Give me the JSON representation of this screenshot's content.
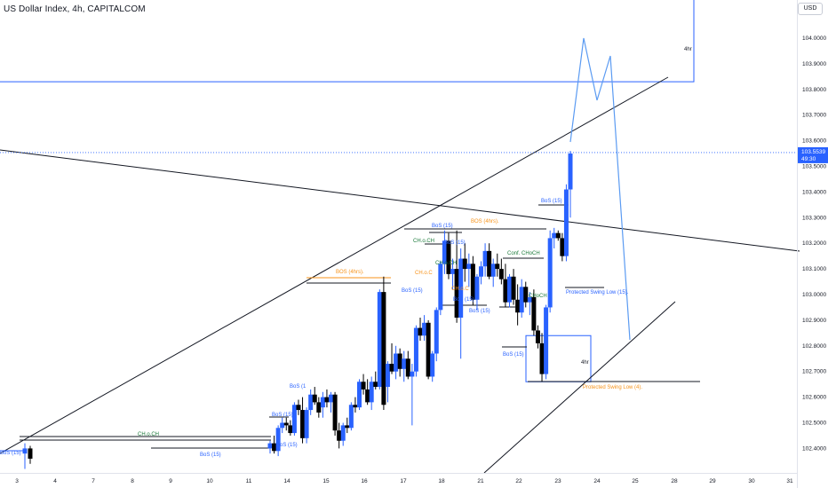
{
  "header": {
    "title": "US Dollar Index, 4h, CAPITALCOM",
    "currency": "USD"
  },
  "colors": {
    "bull": "#2962ff",
    "bear": "#000000",
    "label_blue": "#2962ff",
    "label_orange": "#f7931a",
    "label_green": "#1b7a3a",
    "projection": "#5b9bf2",
    "trendline": "#131722"
  },
  "last_price": {
    "value": "103.5539",
    "countdown": "49:30"
  },
  "chart_data": {
    "type": "candlestick",
    "x_ticks": [
      {
        "label": "3",
        "date": "2023-10-03"
      },
      {
        "label": "4",
        "date": "2023-10-04"
      },
      {
        "label": "7",
        "date": "2023-10-07"
      },
      {
        "label": "8",
        "date": "2023-10-08"
      },
      {
        "label": "9",
        "date": "2023-10-09"
      },
      {
        "label": "10",
        "date": "2023-10-10"
      },
      {
        "label": "11",
        "date": "2023-10-11"
      },
      {
        "label": "14",
        "date": "2023-10-14"
      },
      {
        "label": "15",
        "date": "2023-10-15"
      },
      {
        "label": "16",
        "date": "2023-10-16"
      },
      {
        "label": "17",
        "date": "2023-10-17"
      },
      {
        "label": "18",
        "date": "2023-10-18"
      },
      {
        "label": "21",
        "date": "2023-10-21"
      },
      {
        "label": "22",
        "date": "2023-10-22"
      },
      {
        "label": "23",
        "date": "2023-10-23"
      },
      {
        "label": "24",
        "date": "2023-10-24"
      },
      {
        "label": "25",
        "date": "2023-10-25"
      },
      {
        "label": "28",
        "date": "2023-10-28"
      },
      {
        "label": "29",
        "date": "2023-10-29"
      },
      {
        "label": "30",
        "date": "2023-10-30"
      },
      {
        "label": "31",
        "date": "2023-10-31"
      }
    ],
    "y_ticks": [
      "104.0000",
      "103.9000",
      "103.8000",
      "103.7000",
      "103.6000",
      "103.5000",
      "103.4000",
      "103.3000",
      "103.2000",
      "103.1000",
      "103.0000",
      "102.9000",
      "102.8000",
      "102.7000",
      "102.6000",
      "102.5000",
      "102.4000"
    ],
    "ylim": [
      102.3,
      104.2
    ],
    "candles": [
      {
        "o": 102.38,
        "h": 102.42,
        "l": 102.32,
        "c": 102.4
      },
      {
        "o": 102.4,
        "h": 102.41,
        "l": 102.34,
        "c": 102.36
      },
      {
        "o": 102.4,
        "h": 102.43,
        "l": 102.38,
        "c": 102.42
      },
      {
        "o": 102.42,
        "h": 102.45,
        "l": 102.38,
        "c": 102.39
      },
      {
        "o": 102.39,
        "h": 102.49,
        "l": 102.37,
        "c": 102.48
      },
      {
        "o": 102.48,
        "h": 102.52,
        "l": 102.46,
        "c": 102.5
      },
      {
        "o": 102.5,
        "h": 102.52,
        "l": 102.47,
        "c": 102.49
      },
      {
        "o": 102.49,
        "h": 102.51,
        "l": 102.45,
        "c": 102.46
      },
      {
        "o": 102.46,
        "h": 102.58,
        "l": 102.45,
        "c": 102.57
      },
      {
        "o": 102.57,
        "h": 102.59,
        "l": 102.53,
        "c": 102.55
      },
      {
        "o": 102.55,
        "h": 102.6,
        "l": 102.42,
        "c": 102.44
      },
      {
        "o": 102.44,
        "h": 102.56,
        "l": 102.42,
        "c": 102.55
      },
      {
        "o": 102.55,
        "h": 102.63,
        "l": 102.53,
        "c": 102.61
      },
      {
        "o": 102.61,
        "h": 102.64,
        "l": 102.57,
        "c": 102.58
      },
      {
        "o": 102.58,
        "h": 102.6,
        "l": 102.52,
        "c": 102.54
      },
      {
        "o": 102.56,
        "h": 102.62,
        "l": 102.52,
        "c": 102.6
      },
      {
        "o": 102.6,
        "h": 102.63,
        "l": 102.56,
        "c": 102.58
      },
      {
        "o": 102.58,
        "h": 102.62,
        "l": 102.54,
        "c": 102.61
      },
      {
        "o": 102.61,
        "h": 102.62,
        "l": 102.45,
        "c": 102.47
      },
      {
        "o": 102.47,
        "h": 102.5,
        "l": 102.4,
        "c": 102.43
      },
      {
        "o": 102.43,
        "h": 102.5,
        "l": 102.41,
        "c": 102.49
      },
      {
        "o": 102.49,
        "h": 102.52,
        "l": 102.46,
        "c": 102.48
      },
      {
        "o": 102.48,
        "h": 102.58,
        "l": 102.47,
        "c": 102.57
      },
      {
        "o": 102.57,
        "h": 102.6,
        "l": 102.54,
        "c": 102.56
      },
      {
        "o": 102.56,
        "h": 102.67,
        "l": 102.55,
        "c": 102.66
      },
      {
        "o": 102.66,
        "h": 102.69,
        "l": 102.61,
        "c": 102.63
      },
      {
        "o": 102.63,
        "h": 102.67,
        "l": 102.57,
        "c": 102.58
      },
      {
        "o": 102.58,
        "h": 102.68,
        "l": 102.55,
        "c": 102.66
      },
      {
        "o": 102.66,
        "h": 102.7,
        "l": 102.63,
        "c": 102.64
      },
      {
        "o": 102.64,
        "h": 103.02,
        "l": 102.63,
        "c": 103.01
      },
      {
        "o": 103.01,
        "h": 103.07,
        "l": 102.55,
        "c": 102.57
      },
      {
        "o": 102.64,
        "h": 102.74,
        "l": 102.58,
        "c": 102.73
      },
      {
        "o": 102.73,
        "h": 102.81,
        "l": 102.69,
        "c": 102.7
      },
      {
        "o": 102.7,
        "h": 102.8,
        "l": 102.67,
        "c": 102.77
      },
      {
        "o": 102.77,
        "h": 102.79,
        "l": 102.68,
        "c": 102.71
      },
      {
        "o": 102.71,
        "h": 102.78,
        "l": 102.66,
        "c": 102.75
      },
      {
        "o": 102.75,
        "h": 102.78,
        "l": 102.67,
        "c": 102.68
      },
      {
        "o": 102.68,
        "h": 102.73,
        "l": 102.49,
        "c": 102.7
      },
      {
        "o": 102.7,
        "h": 102.88,
        "l": 102.68,
        "c": 102.87
      },
      {
        "o": 102.87,
        "h": 102.91,
        "l": 102.82,
        "c": 102.84
      },
      {
        "o": 102.84,
        "h": 102.92,
        "l": 102.82,
        "c": 102.89
      },
      {
        "o": 102.89,
        "h": 102.9,
        "l": 102.67,
        "c": 102.68
      },
      {
        "o": 102.68,
        "h": 102.78,
        "l": 102.66,
        "c": 102.77
      },
      {
        "o": 102.77,
        "h": 102.95,
        "l": 102.74,
        "c": 102.94
      },
      {
        "o": 102.94,
        "h": 103.13,
        "l": 102.92,
        "c": 103.12
      },
      {
        "o": 103.12,
        "h": 103.25,
        "l": 103.08,
        "c": 103.21
      },
      {
        "o": 103.21,
        "h": 103.24,
        "l": 103.06,
        "c": 103.08
      },
      {
        "o": 103.08,
        "h": 103.14,
        "l": 103.02,
        "c": 103.1
      },
      {
        "o": 103.1,
        "h": 103.25,
        "l": 102.89,
        "c": 102.91
      },
      {
        "o": 102.91,
        "h": 103.18,
        "l": 102.75,
        "c": 103.14
      },
      {
        "o": 103.14,
        "h": 103.2,
        "l": 103.05,
        "c": 103.1
      },
      {
        "o": 103.1,
        "h": 103.16,
        "l": 103.03,
        "c": 103.12
      },
      {
        "o": 103.12,
        "h": 103.15,
        "l": 102.96,
        "c": 102.98
      },
      {
        "o": 102.98,
        "h": 103.08,
        "l": 102.94,
        "c": 103.07
      },
      {
        "o": 103.07,
        "h": 103.13,
        "l": 103.04,
        "c": 103.11
      },
      {
        "o": 103.11,
        "h": 103.2,
        "l": 103.07,
        "c": 103.17
      },
      {
        "o": 103.17,
        "h": 103.2,
        "l": 103.06,
        "c": 103.07
      },
      {
        "o": 103.07,
        "h": 103.14,
        "l": 103.03,
        "c": 103.12
      },
      {
        "o": 103.12,
        "h": 103.16,
        "l": 103.07,
        "c": 103.1
      },
      {
        "o": 103.1,
        "h": 103.14,
        "l": 103.04,
        "c": 103.06
      },
      {
        "o": 103.06,
        "h": 103.12,
        "l": 102.95,
        "c": 102.97
      },
      {
        "o": 102.97,
        "h": 103.08,
        "l": 102.95,
        "c": 103.07
      },
      {
        "o": 103.07,
        "h": 103.1,
        "l": 102.96,
        "c": 102.98
      },
      {
        "o": 102.98,
        "h": 103.04,
        "l": 102.88,
        "c": 102.93
      },
      {
        "o": 102.93,
        "h": 103.06,
        "l": 102.91,
        "c": 103.03
      },
      {
        "o": 103.03,
        "h": 103.05,
        "l": 102.95,
        "c": 102.97
      },
      {
        "o": 102.97,
        "h": 103.01,
        "l": 102.92,
        "c": 102.99
      },
      {
        "o": 102.99,
        "h": 103.02,
        "l": 102.84,
        "c": 102.86
      },
      {
        "o": 102.86,
        "h": 102.88,
        "l": 102.79,
        "c": 102.81
      },
      {
        "o": 102.81,
        "h": 102.85,
        "l": 102.66,
        "c": 102.69
      },
      {
        "o": 102.69,
        "h": 102.96,
        "l": 102.67,
        "c": 102.95
      },
      {
        "o": 102.95,
        "h": 103.25,
        "l": 102.93,
        "c": 103.22
      },
      {
        "o": 103.22,
        "h": 103.26,
        "l": 103.18,
        "c": 103.24
      },
      {
        "o": 103.24,
        "h": 103.25,
        "l": 103.21,
        "c": 103.22
      },
      {
        "o": 103.22,
        "h": 103.24,
        "l": 103.13,
        "c": 103.15
      },
      {
        "o": 103.15,
        "h": 103.43,
        "l": 103.13,
        "c": 103.41
      },
      {
        "o": 103.41,
        "h": 103.56,
        "l": 103.3,
        "c": 103.55
      }
    ],
    "series": [
      {
        "name": "BoS (15)",
        "type": "line",
        "x": [
          "2023-10-03",
          "2023-10-03"
        ],
        "y": [
          102.4,
          102.4
        ]
      },
      {
        "name": "CH.o.CH",
        "type": "line",
        "x": [
          "2023-10-03",
          "2023-10-11"
        ],
        "y": [
          102.44,
          102.44
        ]
      },
      {
        "name": "BoS (15)",
        "type": "line",
        "x": [
          "2023-10-09",
          "2023-10-11"
        ],
        "y": [
          102.4,
          102.4
        ]
      },
      {
        "name": "BoS (4hrs)",
        "type": "line",
        "x": [
          "2023-10-14",
          "2023-10-17"
        ],
        "y": [
          103.07,
          103.07
        ]
      },
      {
        "name": "BoS (4hrs)",
        "type": "line",
        "x": [
          "2023-10-18",
          "2023-10-22"
        ],
        "y": [
          103.25,
          103.25
        ]
      },
      {
        "name": "Protected Swing Low (15)",
        "type": "line",
        "x": [
          "2023-10-22",
          "2023-10-23"
        ],
        "y": [
          103.03,
          103.03
        ]
      },
      {
        "name": "Protected Swing Low (4)",
        "type": "line",
        "x": [
          "2023-10-22",
          "2023-10-26"
        ],
        "y": [
          102.66,
          102.66
        ]
      },
      {
        "name": "Trendline",
        "type": "line",
        "x": [
          "2023-10-03",
          "2023-10-25"
        ],
        "y": [
          102.41,
          103.83
        ]
      },
      {
        "name": "Trendline",
        "type": "line",
        "x": [
          "2023-10-03",
          "2023-10-31"
        ],
        "y": [
          103.56,
          103.17
        ]
      },
      {
        "name": "Trendline",
        "type": "line",
        "x": [
          "2023-10-21",
          "2023-10-26"
        ],
        "y": [
          102.3,
          102.96
        ]
      }
    ]
  },
  "zones": [
    {
      "label": "4hr",
      "y_top": 104.17,
      "y_bottom": 103.83
    },
    {
      "label": "4hr",
      "y_top": 102.84,
      "y_bottom": 102.66
    }
  ],
  "projection": [
    {
      "x": "2023-10-23",
      "y": 103.6
    },
    {
      "x": "2023-10-24",
      "y": 104.0
    },
    {
      "x": "2023-10-24",
      "y": 103.75
    },
    {
      "x": "2023-10-24",
      "y": 103.93
    },
    {
      "x": "2023-10-25",
      "y": 102.82
    }
  ],
  "annotations": [
    {
      "text": "BoS (15)",
      "color": "label_blue"
    },
    {
      "text": "CH.o.CH",
      "color": "label_green"
    },
    {
      "text": "BoS (15)",
      "color": "label_blue"
    },
    {
      "text": "BoS (15)",
      "color": "label_blue"
    },
    {
      "text": "BoS (15)",
      "color": "label_blue"
    },
    {
      "text": "BoS (1",
      "color": "label_blue"
    },
    {
      "text": "BOS (4hrs).",
      "color": "label_orange"
    },
    {
      "text": "CH.o.CH",
      "color": "label_green"
    },
    {
      "text": "BoS (15)",
      "color": "label_blue"
    },
    {
      "text": "BoS (15)",
      "color": "label_blue"
    },
    {
      "text": "CH.o.CH",
      "color": "label_green"
    },
    {
      "text": "CH.o.C",
      "color": "label_orange"
    },
    {
      "text": "CH.o.C",
      "color": "label_orange"
    },
    {
      "text": "BoS (15)",
      "color": "label_blue"
    },
    {
      "text": "BOS (4hrs).",
      "color": "label_orange"
    },
    {
      "text": "BoS (15)",
      "color": "label_blue"
    },
    {
      "text": "BoS (15)",
      "color": "label_blue"
    },
    {
      "text": "Conf. CHoCH",
      "color": "label_green"
    },
    {
      "text": "BoS (15)",
      "color": "label_blue"
    },
    {
      "text": "CHoCH",
      "color": "label_green"
    },
    {
      "text": "Protected Swing Low (15).",
      "color": "label_blue"
    },
    {
      "text": "BoS (15)",
      "color": "label_blue"
    },
    {
      "text": "Protected Swing Low (4).",
      "color": "label_orange"
    },
    {
      "text": "4hr",
      "color": "trendline"
    },
    {
      "text": "4hr",
      "color": "trendline"
    }
  ]
}
